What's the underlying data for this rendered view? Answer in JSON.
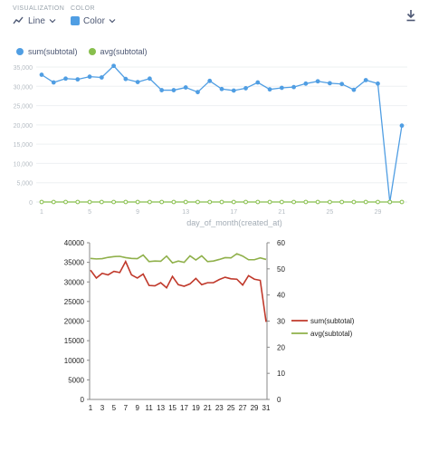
{
  "toolbar": {
    "visualization_label": "VISUALIZATION",
    "visualization_value": "Line",
    "color_label": "COLOR",
    "color_value": "Color",
    "icons": [
      "line-chart-icon",
      "chevron-down-icon",
      "color-swatch-icon",
      "download-icon"
    ]
  },
  "colors": {
    "sum": "#509ee3",
    "avg": "#88bf4d",
    "excel_sum": "#c0392b",
    "excel_avg": "#8fb04a"
  },
  "chart_data": [
    {
      "type": "line",
      "legend_position": "top-left",
      "xlabel": "day_of_month(created_at)",
      "x": [
        1,
        2,
        3,
        4,
        5,
        6,
        7,
        8,
        9,
        10,
        11,
        12,
        13,
        14,
        15,
        16,
        17,
        18,
        19,
        20,
        21,
        22,
        23,
        24,
        25,
        26,
        27,
        28,
        29,
        30,
        31
      ],
      "x_ticks": [
        "1",
        "5",
        "9",
        "13",
        "17",
        "21",
        "25",
        "29"
      ],
      "y_ticks": [
        "0",
        "5,000",
        "10,000",
        "15,000",
        "20,000",
        "25,000",
        "30,000",
        "35,000"
      ],
      "ylim": [
        0,
        35000
      ],
      "grid": true,
      "series": [
        {
          "name": "sum(subtotal)",
          "values": [
            33000,
            31000,
            32000,
            31800,
            32500,
            32300,
            35300,
            31900,
            31100,
            32000,
            29000,
            29000,
            29700,
            28500,
            31400,
            29300,
            28900,
            29500,
            31000,
            29200,
            29600,
            29800,
            30700,
            31300,
            30800,
            30600,
            29100,
            31600,
            30700,
            0,
            19800
          ]
        },
        {
          "name": "avg(subtotal)",
          "values": [
            0,
            0,
            0,
            0,
            0,
            0,
            0,
            0,
            0,
            0,
            0,
            0,
            0,
            0,
            0,
            0,
            0,
            0,
            0,
            0,
            0,
            0,
            0,
            0,
            0,
            0,
            0,
            0,
            0,
            0,
            0
          ]
        }
      ]
    },
    {
      "type": "line",
      "legend_position": "right",
      "x": [
        1,
        2,
        3,
        4,
        5,
        6,
        7,
        8,
        9,
        10,
        11,
        12,
        13,
        14,
        15,
        16,
        17,
        18,
        19,
        20,
        21,
        22,
        23,
        24,
        25,
        26,
        27,
        28,
        29,
        30,
        31
      ],
      "x_ticks": [
        "1",
        "3",
        "5",
        "7",
        "9",
        "11",
        "13",
        "15",
        "17",
        "19",
        "21",
        "23",
        "25",
        "27",
        "29",
        "31"
      ],
      "y_ticks_left": [
        "0",
        "5000",
        "10000",
        "15000",
        "20000",
        "25000",
        "30000",
        "35000",
        "40000"
      ],
      "y_ticks_right": [
        "0",
        "10",
        "20",
        "30",
        "40",
        "50",
        "60"
      ],
      "ylim_left": [
        0,
        40000
      ],
      "ylim_right": [
        0,
        60
      ],
      "grid": false,
      "series": [
        {
          "name": "sum(subtotal)",
          "axis": "left",
          "values": [
            33000,
            31000,
            32200,
            31800,
            32700,
            32400,
            35200,
            31800,
            31000,
            32000,
            29100,
            29000,
            29800,
            28500,
            31400,
            29300,
            28900,
            29500,
            30900,
            29300,
            29800,
            29800,
            30600,
            31200,
            30800,
            30700,
            29200,
            31600,
            30700,
            30400,
            19800
          ]
        },
        {
          "name": "avg(subtotal)",
          "axis": "right",
          "values": [
            54,
            53.8,
            53.9,
            54.4,
            54.7,
            54.8,
            54.3,
            54,
            53.9,
            55.3,
            52.8,
            53,
            52.9,
            54.9,
            52.3,
            53,
            52.5,
            55,
            53.4,
            55,
            52.8,
            53,
            53.6,
            54.3,
            54.2,
            55.8,
            54.9,
            53.5,
            53.5,
            54.2,
            53.6
          ]
        }
      ]
    }
  ]
}
